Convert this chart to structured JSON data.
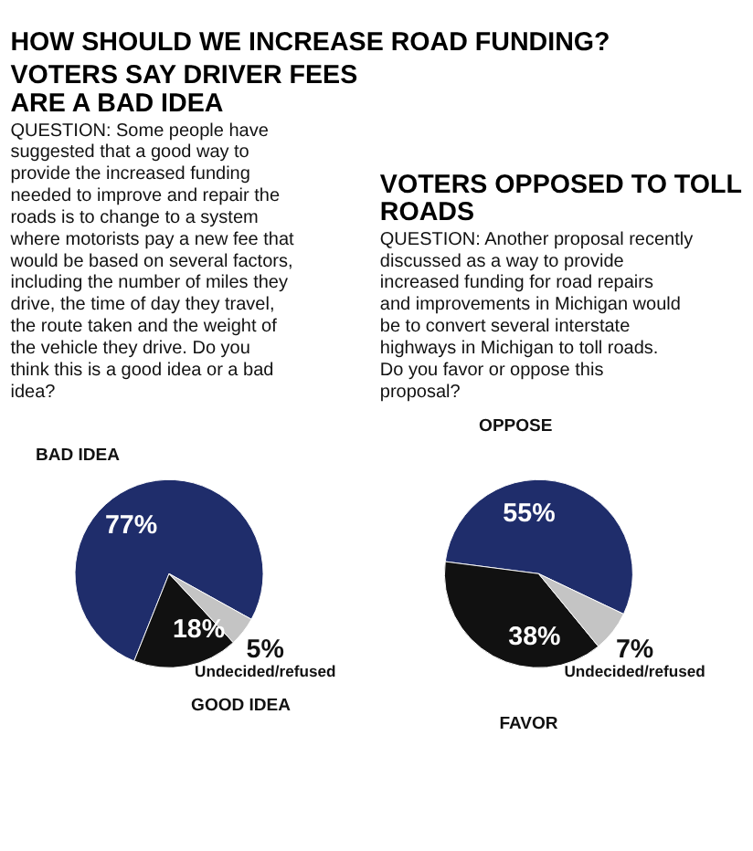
{
  "chart_data": [
    {
      "type": "pie",
      "title": "VOTERS SAY DRIVER FEES ARE A BAD IDEA",
      "subtitle": "QUESTION: Some people have suggested that a good way to provide the increased funding needed to improve and repair the roads is to change to a system where motorists pay a new fee that would be based on several factors, including the number of miles they drive, the time of day they travel, the route taken and the weight of the vehicle they drive. Do you think this is a good idea or a bad idea?",
      "annotations": [
        "HOW SHOULD WE INCREASE ROAD FUNDING?"
      ],
      "categories": [
        "BAD IDEA",
        "GOOD IDEA",
        "Undecided/refused"
      ],
      "values": [
        77,
        18,
        5
      ],
      "colors": [
        "#1f2d6b",
        "#111111",
        "#c4c4c4"
      ],
      "value_labels": [
        "77%",
        "18%",
        "5%"
      ]
    },
    {
      "type": "pie",
      "title": "VOTERS OPPOSED TO TOLL ROADS",
      "subtitle": "QUESTION: Another proposal recently discussed as a way to provide increased funding for road repairs and improvements in Michigan would be to convert several interstate highways in Michigan to toll roads. Do you favor or oppose this proposal?",
      "categories": [
        "OPPOSE",
        "FAVOR",
        "Undecided/refused"
      ],
      "values": [
        55,
        38,
        7
      ],
      "colors": [
        "#1f2d6b",
        "#111111",
        "#c4c4c4"
      ],
      "value_labels": [
        "55%",
        "38%",
        "7%"
      ]
    }
  ]
}
